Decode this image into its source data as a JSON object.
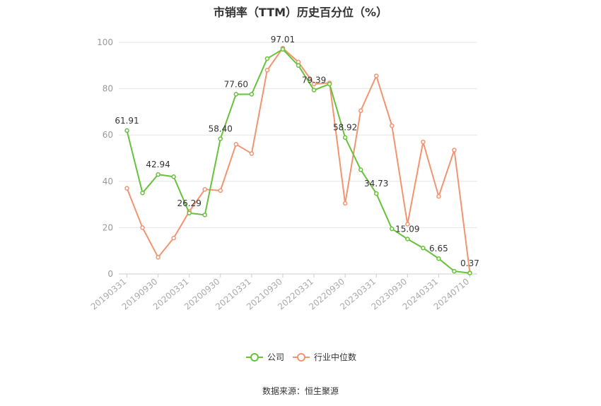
{
  "title": "市销率（TTM）历史百分位（%）",
  "source": "数据来源：恒生聚源",
  "colors": {
    "company": "#67c23a",
    "industry": "#f39470",
    "grid": "#e6e6e6",
    "axis": "#cccccc"
  },
  "chart_data": {
    "type": "line",
    "title": "市销率（TTM）历史百分位（%）",
    "xlabel": "",
    "ylabel": "",
    "ylim": [
      0,
      100
    ],
    "yticks": [
      0,
      20,
      40,
      60,
      80,
      100
    ],
    "x_tick_labels": [
      "20190331",
      "20190930",
      "20200331",
      "20200930",
      "20210331",
      "20210930",
      "20220331",
      "20220930",
      "20230331",
      "20230930",
      "20240331",
      "20240710"
    ],
    "x_tick_indices": [
      0,
      2,
      4,
      6,
      8,
      10,
      12,
      14,
      16,
      18,
      20,
      22
    ],
    "grid": true,
    "legend": "bottom-center",
    "series": [
      {
        "name": "公司",
        "values": [
          61.91,
          35.0,
          42.94,
          42.0,
          26.29,
          25.5,
          58.4,
          77.6,
          77.6,
          93.0,
          97.01,
          90.0,
          79.39,
          82.0,
          58.92,
          45.0,
          34.73,
          19.5,
          15.09,
          11.2,
          6.65,
          1.2,
          0.37
        ],
        "labels": {
          "0": "61.91",
          "2": "42.94",
          "4": "26.29",
          "6": "58.40",
          "7": "77.60",
          "10": "97.01",
          "12": "79.39",
          "14": "58.92",
          "16": "34.73",
          "18": "15.09",
          "20": "6.65",
          "22": "0.37"
        }
      },
      {
        "name": "行业中位数",
        "values": [
          37.0,
          20.0,
          7.2,
          15.5,
          27.0,
          36.5,
          36.0,
          56.0,
          52.0,
          88.0,
          97.5,
          91.5,
          82.0,
          82.5,
          30.5,
          70.5,
          85.5,
          64.0,
          21.5,
          57.0,
          33.5,
          53.5,
          0.5
        ]
      }
    ]
  }
}
